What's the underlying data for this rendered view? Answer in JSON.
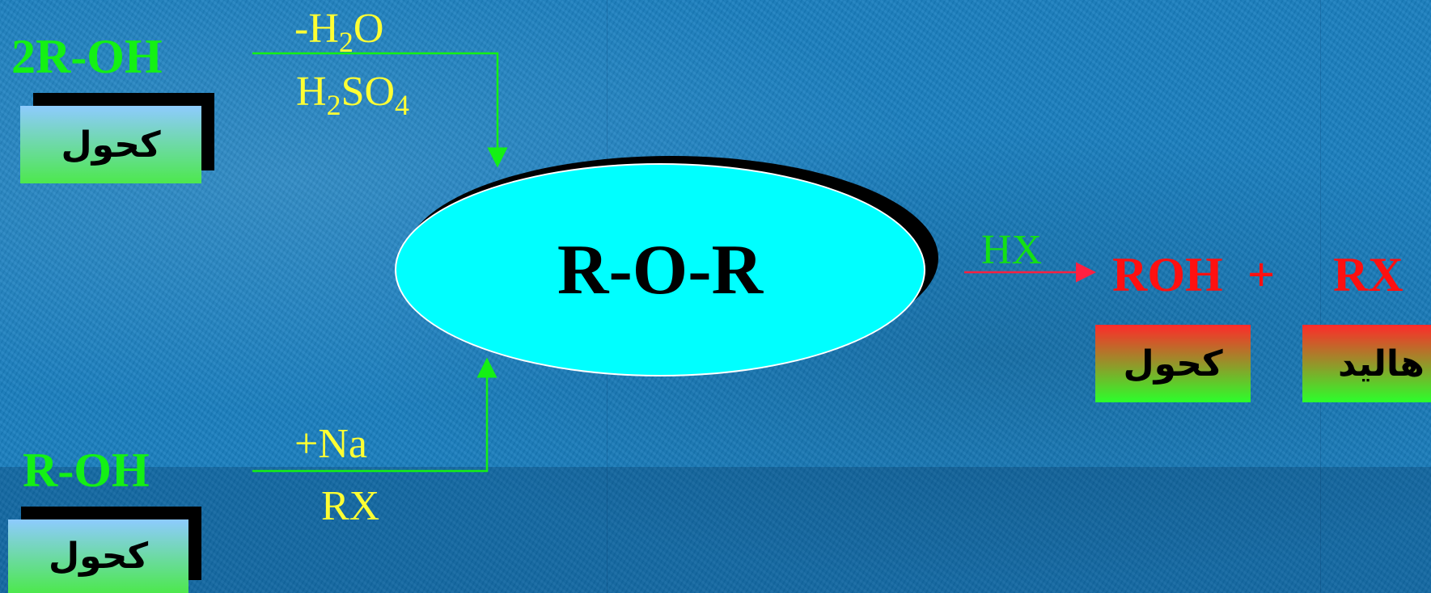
{
  "title_formula": "R-O-R",
  "top_left": {
    "reactant": "2R-OH",
    "label": "كحول",
    "reagent_line1_prefix": "-H",
    "reagent_line1_sub": "2",
    "reagent_line1_suffix": "O",
    "reagent_line2_parts": [
      "H",
      "2",
      "SO",
      "4"
    ]
  },
  "bottom_left": {
    "reactant": "R-OH",
    "label": "كحول",
    "reagent_line1": "+Na",
    "reagent_line2": "RX"
  },
  "right": {
    "reagent": "HX",
    "product1": "ROH",
    "plus": "+",
    "product2": "RX",
    "product1_label": "كحول",
    "product2_label": "هاليد"
  },
  "colors": {
    "background": "#1a7fbf",
    "ellipse": "#00ffff",
    "green_text": "#14f014",
    "yellow_text": "#ffff33",
    "red_text": "#ff1010",
    "arrow_green": "#14f014",
    "arrow_red": "#ff2040"
  }
}
